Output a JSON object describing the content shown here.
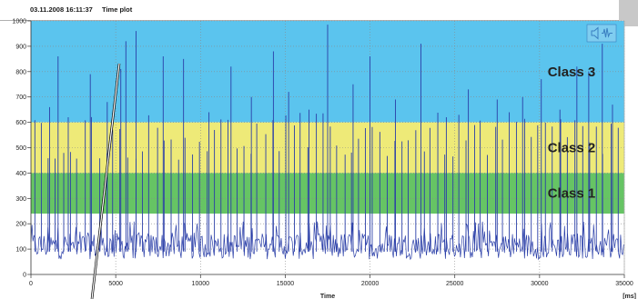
{
  "header": {
    "timestamp": "03.11.2008 16:11:37",
    "title": "Time plot"
  },
  "chart_data": {
    "type": "line",
    "x_label": "Time",
    "x_unit": "[ms]",
    "xlim": [
      0,
      35000
    ],
    "ylim": [
      0,
      1000
    ],
    "x_ticks": [
      0,
      5000,
      10000,
      15000,
      20000,
      25000,
      30000,
      35000
    ],
    "y_ticks": [
      0,
      100,
      200,
      300,
      400,
      500,
      600,
      700,
      800,
      900,
      1000
    ],
    "grid": "dotted",
    "line_color": "#2b3fa8",
    "bands": [
      {
        "label": "Class 3",
        "from": 600,
        "to": 1000,
        "color": "#5bc4ee"
      },
      {
        "label": "Class 2",
        "from": 400,
        "to": 600,
        "color": "#eeea78"
      },
      {
        "label": "Class 1",
        "from": 240,
        "to": 400,
        "color": "#66c464"
      }
    ],
    "baseline": {
      "min": 60,
      "max": 165
    },
    "peaks": [
      [
        1100,
        660
      ],
      [
        1600,
        860
      ],
      [
        2200,
        620
      ],
      [
        3500,
        790
      ],
      [
        4500,
        680
      ],
      [
        5300,
        810
      ],
      [
        5600,
        920
      ],
      [
        6200,
        960
      ],
      [
        7800,
        860
      ],
      [
        9000,
        850
      ],
      [
        10500,
        640
      ],
      [
        11800,
        820
      ],
      [
        13000,
        700
      ],
      [
        14300,
        880
      ],
      [
        15200,
        720
      ],
      [
        16400,
        650
      ],
      [
        17500,
        985
      ],
      [
        19000,
        750
      ],
      [
        20000,
        860
      ],
      [
        21500,
        690
      ],
      [
        23000,
        910
      ],
      [
        24500,
        620
      ],
      [
        25800,
        730
      ],
      [
        27500,
        690
      ],
      [
        29000,
        700
      ],
      [
        30100,
        770
      ],
      [
        31200,
        650
      ],
      [
        32200,
        820
      ],
      [
        32900,
        800
      ],
      [
        33700,
        910
      ],
      [
        34300,
        670
      ]
    ],
    "regular_peak_spacing": 425,
    "regular_peak_range": [
      450,
      640
    ]
  },
  "controls": {
    "sound_icon_glyph": "🔈",
    "icon_color": "#3a7fc1"
  }
}
